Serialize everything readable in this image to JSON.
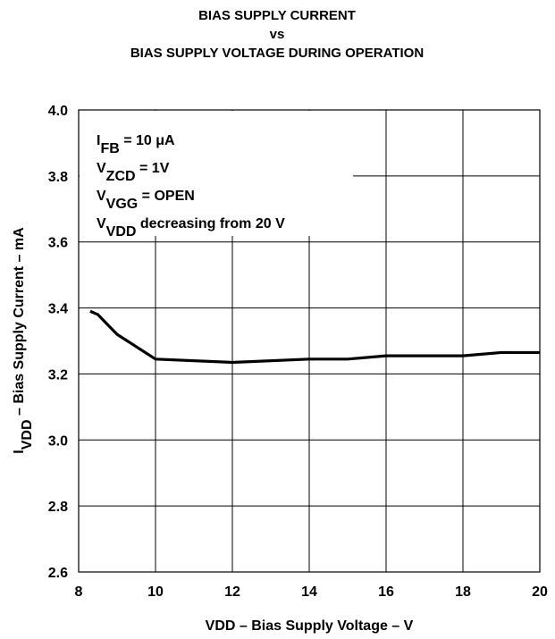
{
  "chart_data": {
    "type": "line",
    "title": [
      "BIAS SUPPLY CURRENT",
      "vs",
      "BIAS SUPPLY VOLTAGE DURING OPERATION"
    ],
    "xlabel": "VDD – Bias Supply Voltage  – V",
    "ylabel": {
      "parts": [
        {
          "text": "I"
        },
        {
          "text": "VDD",
          "sub": true
        },
        {
          "text": " – Bias Supply Current – mA"
        }
      ]
    },
    "annotations": [
      {
        "parts": [
          {
            "text": "I"
          },
          {
            "text": "FB",
            "sub": true
          },
          {
            "text": " = 10 μA"
          }
        ]
      },
      {
        "parts": [
          {
            "text": "V"
          },
          {
            "text": "ZCD",
            "sub": true
          },
          {
            "text": " = 1V"
          }
        ]
      },
      {
        "parts": [
          {
            "text": "V"
          },
          {
            "text": "VGG",
            "sub": true
          },
          {
            "text": " = OPEN"
          }
        ]
      },
      {
        "parts": [
          {
            "text": "V"
          },
          {
            "text": "VDD",
            "sub": true
          },
          {
            "text": " decreasing from 20 V"
          }
        ]
      }
    ],
    "series": [
      {
        "color": "#000000",
        "x": [
          8.3,
          8.5,
          9,
          10,
          12,
          14,
          15,
          16,
          18,
          19,
          20
        ],
        "values": [
          3.39,
          3.38,
          3.32,
          3.245,
          3.235,
          3.245,
          3.245,
          3.255,
          3.255,
          3.265,
          3.265
        ]
      }
    ],
    "xlim": [
      8,
      20
    ],
    "xticks": [
      8,
      10,
      12,
      14,
      16,
      18,
      20
    ],
    "ylim": [
      2.6,
      4.0
    ],
    "yticks": [
      2.6,
      2.8,
      {
        "value": 3,
        "label": "3.0"
      },
      3.2,
      3.4,
      3.6,
      3.8,
      {
        "value": 4,
        "label": "4.0"
      }
    ],
    "grid": true
  }
}
